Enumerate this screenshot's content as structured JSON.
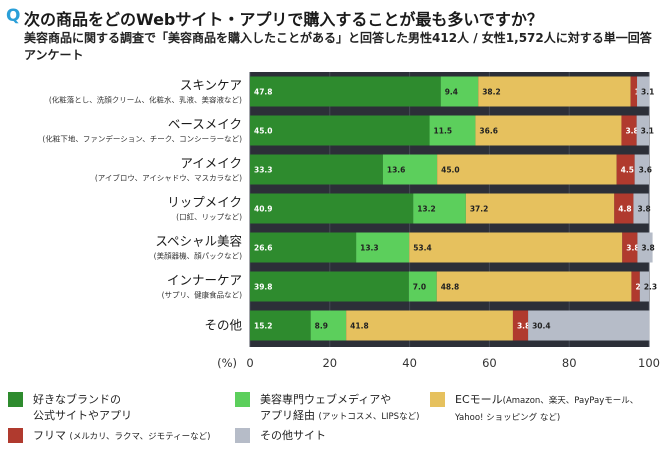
{
  "header": {
    "q_mark": "Q",
    "title": "次の商品をどのWebサイト・アプリで購入することが最も多いですか？",
    "subtitle": "美容商品に関する調査で「美容商品を購入したことがある」と回答した男性412人 / 女性1,572人に対する単一回答アンケート"
  },
  "chart_data": {
    "type": "bar",
    "orientation": "horizontal",
    "stacked": true,
    "categories": [
      {
        "label": "スキンケア",
        "sublabel": "(化粧落とし、洗顔クリーム、化粧水、乳液、美容液など)"
      },
      {
        "label": "ベースメイク",
        "sublabel": "(化粧下地、ファンデーション、チーク、コンシーラーなど)"
      },
      {
        "label": "アイメイク",
        "sublabel": "(アイブロウ、アイシャドウ、マスカラなど)"
      },
      {
        "label": "リップメイク",
        "sublabel": "(口紅、リップなど)"
      },
      {
        "label": "スペシャル美容",
        "sublabel": "(美顔器機、顔パックなど)"
      },
      {
        "label": "インナーケア",
        "sublabel": "(サプリ、健康食品など)"
      },
      {
        "label": "その他",
        "sublabel": ""
      }
    ],
    "series": [
      {
        "name": "好きなブランドの公式サイトやアプリ",
        "color": "#2e8b2e",
        "values": [
          47.8,
          45.0,
          33.3,
          40.9,
          26.6,
          39.8,
          15.2
        ]
      },
      {
        "name": "美容専門ウェブメディアやアプリ経由",
        "color": "#5ccf5c",
        "values": [
          9.4,
          11.5,
          13.6,
          13.2,
          13.3,
          7.0,
          8.9
        ]
      },
      {
        "name": "ECモール",
        "color": "#e6c15e",
        "values": [
          38.2,
          36.6,
          45.0,
          37.2,
          53.4,
          48.8,
          41.8
        ]
      },
      {
        "name": "フリマ",
        "color": "#b03a2e",
        "values": [
          1.6,
          3.8,
          4.5,
          4.8,
          3.8,
          2.1,
          3.8
        ]
      },
      {
        "name": "その他サイト",
        "color": "#b6bcc8",
        "values": [
          3.1,
          3.1,
          3.6,
          3.8,
          3.8,
          2.3,
          30.4
        ]
      }
    ],
    "xlabel": "(%)",
    "xlim": [
      0,
      100
    ],
    "xticks": [
      0,
      20,
      40,
      60,
      80,
      100
    ],
    "grid": true,
    "legend_position": "bottom",
    "background": "#2c2f38"
  },
  "legend": [
    {
      "swatch": "#2e8b2e",
      "line1": "好きなブランドの",
      "line2": "公式サイトやアプリ",
      "note": ""
    },
    {
      "swatch": "#5ccf5c",
      "line1": "美容専門ウェブメディアや",
      "line2": "アプリ経由",
      "note": "(アットコスメ、LIPSなど)"
    },
    {
      "swatch": "#e6c15e",
      "line1": "ECモール",
      "line2": "Yahoo! ショッピング など)",
      "note": "(Amazon、楽天、PayPayモール、"
    },
    {
      "swatch": "#b03a2e",
      "line1": "フリマ",
      "line2": "",
      "note": "(メルカリ、ラクマ、ジモティーなど)"
    },
    {
      "swatch": "#b6bcc8",
      "line1": "その他サイト",
      "line2": "",
      "note": ""
    }
  ]
}
